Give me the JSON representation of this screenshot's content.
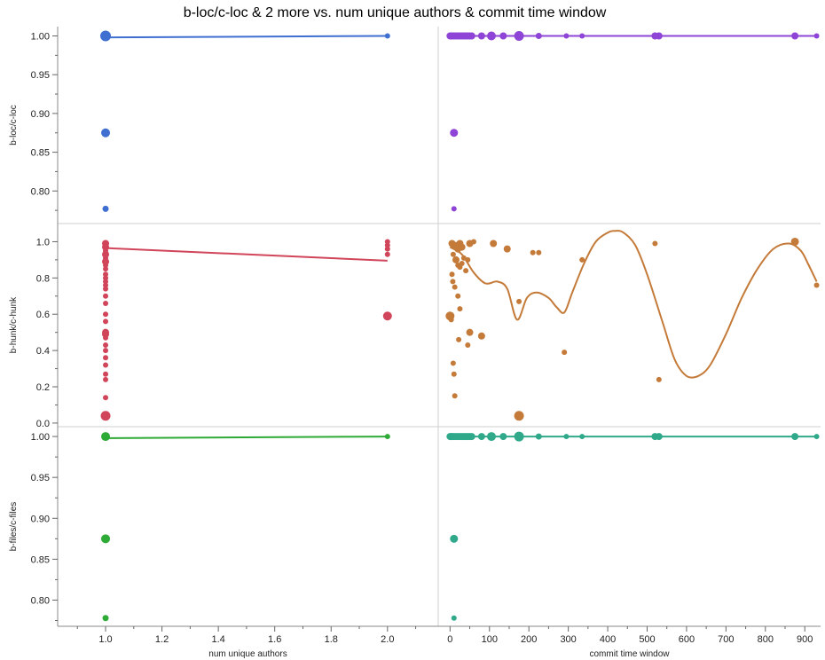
{
  "chart_data": {
    "type": "scatter",
    "title": "b-loc/c-loc & 2 more vs. num unique authors & commit time window",
    "x_axes": [
      {
        "label": "num unique authors",
        "range": [
          0.83,
          2.18
        ],
        "ticks": [
          1.0,
          1.2,
          1.4,
          1.6,
          1.8,
          2.0
        ],
        "tick_labels": [
          "1.0",
          "1.2",
          "1.4",
          "1.6",
          "1.8",
          "2.0"
        ]
      },
      {
        "label": "commit time window",
        "range": [
          -30,
          940
        ],
        "ticks": [
          0,
          100,
          200,
          300,
          400,
          500,
          600,
          700,
          800,
          900
        ],
        "tick_labels": [
          "0",
          "100",
          "200",
          "300",
          "400",
          "500",
          "600",
          "700",
          "800",
          "900"
        ]
      }
    ],
    "y_axes": [
      {
        "label": "b-loc/c-loc",
        "range": [
          0.758,
          1.012
        ],
        "ticks": [
          0.8,
          0.85,
          0.9,
          0.95,
          1.0
        ],
        "tick_labels": [
          "0.80",
          "0.85",
          "0.90",
          "0.95",
          "1.00"
        ]
      },
      {
        "label": "b-hunk/c-hunk",
        "range": [
          -0.02,
          1.1
        ],
        "ticks": [
          0.0,
          0.2,
          0.4,
          0.6,
          0.8,
          1.0
        ],
        "tick_labels": [
          "0.0",
          "0.2",
          "0.4",
          "0.6",
          "0.8",
          "1.0"
        ]
      },
      {
        "label": "b-files/c-files",
        "range": [
          0.768,
          1.012
        ],
        "ticks": [
          0.8,
          0.85,
          0.9,
          0.95,
          1.0
        ],
        "tick_labels": [
          "0.80",
          "0.85",
          "0.90",
          "0.95",
          "1.00"
        ]
      }
    ],
    "panels": [
      {
        "row": 0,
        "col": 0,
        "color": "#3f6fd1",
        "points": [
          [
            1.0,
            1.0,
            6
          ],
          [
            1.0,
            0.875,
            5
          ],
          [
            1.0,
            0.777,
            3.5
          ],
          [
            2.0,
            1.0,
            3
          ]
        ],
        "fit": [
          [
            1.0,
            0.998
          ],
          [
            2.0,
            1.0
          ]
        ]
      },
      {
        "row": 0,
        "col": 1,
        "color": "#8e44d6",
        "points": [
          [
            0,
            1.0,
            4
          ],
          [
            3,
            1.0,
            4
          ],
          [
            6,
            1.0,
            4
          ],
          [
            10,
            1.0,
            4
          ],
          [
            15,
            1.0,
            4
          ],
          [
            20,
            1.0,
            4
          ],
          [
            25,
            1.0,
            4
          ],
          [
            30,
            1.0,
            4
          ],
          [
            35,
            1.0,
            4
          ],
          [
            40,
            1.0,
            4
          ],
          [
            45,
            1.0,
            4
          ],
          [
            50,
            1.0,
            4
          ],
          [
            55,
            1.0,
            4
          ],
          [
            80,
            1.0,
            4
          ],
          [
            105,
            1.0,
            5
          ],
          [
            135,
            1.0,
            4
          ],
          [
            175,
            1.0,
            5.5
          ],
          [
            225,
            1.0,
            3.5
          ],
          [
            295,
            1.0,
            3
          ],
          [
            335,
            1.0,
            3
          ],
          [
            520,
            1.0,
            4
          ],
          [
            530,
            1.0,
            4
          ],
          [
            875,
            1.0,
            4
          ],
          [
            930,
            1.0,
            3
          ],
          [
            10,
            0.875,
            4.5
          ],
          [
            10,
            0.777,
            3
          ]
        ],
        "fit": [
          [
            0,
            1.0
          ],
          [
            930,
            1.0
          ]
        ]
      },
      {
        "row": 1,
        "col": 0,
        "color": "#d1455a",
        "points": [
          [
            1.0,
            0.04,
            5.5
          ],
          [
            1.0,
            0.14,
            3
          ],
          [
            1.0,
            0.24,
            3
          ],
          [
            1.0,
            0.27,
            3
          ],
          [
            1.0,
            0.32,
            3
          ],
          [
            1.0,
            0.36,
            3
          ],
          [
            1.0,
            0.4,
            3
          ],
          [
            1.0,
            0.43,
            3
          ],
          [
            1.0,
            0.47,
            3
          ],
          [
            1.0,
            0.49,
            4
          ],
          [
            1.0,
            0.5,
            4
          ],
          [
            1.0,
            0.56,
            3
          ],
          [
            1.0,
            0.6,
            3
          ],
          [
            1.0,
            0.66,
            3
          ],
          [
            1.0,
            0.7,
            3
          ],
          [
            1.0,
            0.74,
            3
          ],
          [
            1.0,
            0.76,
            3
          ],
          [
            1.0,
            0.78,
            3
          ],
          [
            1.0,
            0.8,
            3
          ],
          [
            1.0,
            0.82,
            3
          ],
          [
            1.0,
            0.85,
            3
          ],
          [
            1.0,
            0.87,
            3
          ],
          [
            1.0,
            0.89,
            4
          ],
          [
            1.0,
            0.91,
            3
          ],
          [
            1.0,
            0.93,
            4
          ],
          [
            1.0,
            0.95,
            3
          ],
          [
            1.0,
            0.97,
            4
          ],
          [
            1.0,
            0.99,
            4
          ],
          [
            2.0,
            0.59,
            5
          ],
          [
            2.0,
            0.93,
            3
          ],
          [
            2.0,
            0.96,
            3
          ],
          [
            2.0,
            0.98,
            3
          ],
          [
            2.0,
            1.0,
            3
          ]
        ],
        "fit": [
          [
            1.0,
            0.965
          ],
          [
            2.0,
            0.895
          ]
        ]
      },
      {
        "row": 1,
        "col": 1,
        "color": "#c47a38",
        "points": [
          [
            0,
            0.59,
            5
          ],
          [
            3,
            0.57,
            3
          ],
          [
            5,
            0.82,
            3
          ],
          [
            7,
            0.78,
            3
          ],
          [
            8,
            0.33,
            3
          ],
          [
            10,
            0.27,
            3
          ],
          [
            12,
            0.15,
            3
          ],
          [
            5,
            0.99,
            4
          ],
          [
            12,
            0.98,
            4
          ],
          [
            15,
            0.97,
            4
          ],
          [
            20,
            0.96,
            4
          ],
          [
            25,
            0.99,
            4
          ],
          [
            30,
            0.97,
            4
          ],
          [
            8,
            0.93,
            3
          ],
          [
            15,
            0.9,
            4
          ],
          [
            20,
            0.87,
            3
          ],
          [
            25,
            0.86,
            3
          ],
          [
            30,
            0.88,
            3
          ],
          [
            35,
            0.91,
            3
          ],
          [
            45,
            0.9,
            3
          ],
          [
            50,
            0.99,
            4
          ],
          [
            60,
            1.0,
            3
          ],
          [
            40,
            0.84,
            3
          ],
          [
            12,
            0.75,
            3
          ],
          [
            20,
            0.7,
            3
          ],
          [
            25,
            0.63,
            3
          ],
          [
            22,
            0.46,
            3
          ],
          [
            50,
            0.5,
            4
          ],
          [
            80,
            0.48,
            4
          ],
          [
            45,
            0.43,
            3
          ],
          [
            110,
            0.99,
            4
          ],
          [
            145,
            0.96,
            4
          ],
          [
            210,
            0.94,
            3
          ],
          [
            225,
            0.94,
            3
          ],
          [
            175,
            0.67,
            3
          ],
          [
            175,
            0.04,
            5.5
          ],
          [
            290,
            0.39,
            3
          ],
          [
            335,
            0.9,
            3
          ],
          [
            520,
            0.99,
            3
          ],
          [
            530,
            0.24,
            3
          ],
          [
            875,
            1.0,
            4.5
          ],
          [
            930,
            0.76,
            3
          ]
        ],
        "fit": [
          [
            0,
            0.97
          ],
          [
            30,
            0.93
          ],
          [
            60,
            0.83
          ],
          [
            90,
            0.77
          ],
          [
            120,
            0.78
          ],
          [
            145,
            0.74
          ],
          [
            170,
            0.57
          ],
          [
            195,
            0.69
          ],
          [
            220,
            0.72
          ],
          [
            250,
            0.69
          ],
          [
            270,
            0.64
          ],
          [
            290,
            0.61
          ],
          [
            310,
            0.72
          ],
          [
            340,
            0.88
          ],
          [
            370,
            1.0
          ],
          [
            400,
            1.05
          ],
          [
            420,
            1.06
          ],
          [
            440,
            1.05
          ],
          [
            470,
            0.98
          ],
          [
            500,
            0.82
          ],
          [
            540,
            0.55
          ],
          [
            570,
            0.35
          ],
          [
            600,
            0.26
          ],
          [
            630,
            0.26
          ],
          [
            660,
            0.32
          ],
          [
            700,
            0.49
          ],
          [
            740,
            0.69
          ],
          [
            780,
            0.85
          ],
          [
            820,
            0.96
          ],
          [
            860,
            0.99
          ],
          [
            890,
            0.95
          ],
          [
            910,
            0.87
          ],
          [
            930,
            0.78
          ]
        ]
      },
      {
        "row": 2,
        "col": 0,
        "color": "#2eaa36",
        "points": [
          [
            1.0,
            1.0,
            5
          ],
          [
            1.0,
            0.875,
            5
          ],
          [
            1.0,
            0.778,
            3.5
          ],
          [
            2.0,
            1.0,
            3
          ]
        ],
        "fit": [
          [
            1.0,
            0.998
          ],
          [
            2.0,
            1.0
          ]
        ]
      },
      {
        "row": 2,
        "col": 1,
        "color": "#2fa98a",
        "points": [
          [
            0,
            1.0,
            4
          ],
          [
            3,
            1.0,
            4
          ],
          [
            6,
            1.0,
            4
          ],
          [
            10,
            1.0,
            4
          ],
          [
            15,
            1.0,
            4
          ],
          [
            20,
            1.0,
            4
          ],
          [
            25,
            1.0,
            4
          ],
          [
            30,
            1.0,
            4
          ],
          [
            35,
            1.0,
            4
          ],
          [
            40,
            1.0,
            4
          ],
          [
            45,
            1.0,
            4
          ],
          [
            50,
            1.0,
            4
          ],
          [
            55,
            1.0,
            4
          ],
          [
            80,
            1.0,
            4
          ],
          [
            105,
            1.0,
            5
          ],
          [
            135,
            1.0,
            4
          ],
          [
            175,
            1.0,
            5.5
          ],
          [
            225,
            1.0,
            3.5
          ],
          [
            295,
            1.0,
            3
          ],
          [
            335,
            1.0,
            3
          ],
          [
            520,
            1.0,
            4
          ],
          [
            530,
            1.0,
            4
          ],
          [
            875,
            1.0,
            4
          ],
          [
            930,
            1.0,
            3
          ],
          [
            10,
            0.875,
            4.5
          ],
          [
            10,
            0.778,
            3
          ]
        ],
        "fit": [
          [
            0,
            1.0
          ],
          [
            930,
            1.0
          ]
        ]
      }
    ]
  }
}
